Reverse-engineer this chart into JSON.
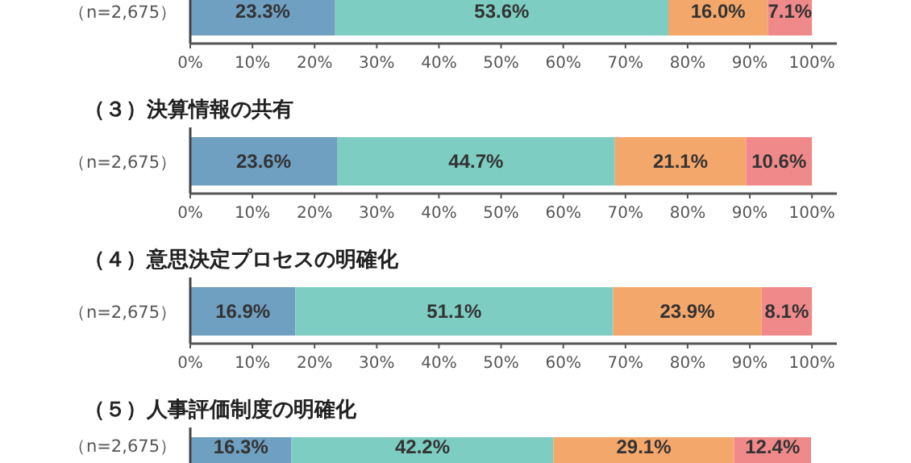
{
  "chart_data": [
    {
      "type": "bar",
      "orientation": "horizontal",
      "stacked": true,
      "categories": [
        "（n=2,675）"
      ],
      "series": [
        {
          "color": "#6f9fc1",
          "values": [
            23.3
          ],
          "value_labels": [
            "23.3%"
          ]
        },
        {
          "color": "#7ecdc3",
          "values": [
            53.6
          ],
          "value_labels": [
            "53.6%"
          ]
        },
        {
          "color": "#f4a76b",
          "values": [
            16.0
          ],
          "value_labels": [
            "16.0%"
          ]
        },
        {
          "color": "#f08a8a",
          "values": [
            7.1
          ],
          "value_labels": [
            "7.1%"
          ]
        }
      ],
      "xlim": [
        0,
        104
      ],
      "xticks": [
        {
          "value": 0,
          "label": "0%"
        },
        {
          "value": 10,
          "label": "10%"
        },
        {
          "value": 20,
          "label": "20%"
        },
        {
          "value": 30,
          "label": "30%"
        },
        {
          "value": 40,
          "label": "40%"
        },
        {
          "value": 50,
          "label": "50%"
        },
        {
          "value": 60,
          "label": "60%"
        },
        {
          "value": 70,
          "label": "70%"
        },
        {
          "value": 80,
          "label": "80%"
        },
        {
          "value": 90,
          "label": "90%"
        },
        {
          "value": 100,
          "label": "100%"
        }
      ]
    },
    {
      "type": "bar",
      "orientation": "horizontal",
      "stacked": true,
      "title": "（３）決算情報の共有",
      "categories": [
        "（n=2,675）"
      ],
      "series": [
        {
          "color": "#6f9fc1",
          "values": [
            23.6
          ],
          "value_labels": [
            "23.6%"
          ]
        },
        {
          "color": "#7ecdc3",
          "values": [
            44.7
          ],
          "value_labels": [
            "44.7%"
          ]
        },
        {
          "color": "#f4a76b",
          "values": [
            21.1
          ],
          "value_labels": [
            "21.1%"
          ]
        },
        {
          "color": "#f08a8a",
          "values": [
            10.6
          ],
          "value_labels": [
            "10.6%"
          ]
        }
      ],
      "xlim": [
        0,
        104
      ],
      "xticks": [
        {
          "value": 0,
          "label": "0%"
        },
        {
          "value": 10,
          "label": "10%"
        },
        {
          "value": 20,
          "label": "20%"
        },
        {
          "value": 30,
          "label": "30%"
        },
        {
          "value": 40,
          "label": "40%"
        },
        {
          "value": 50,
          "label": "50%"
        },
        {
          "value": 60,
          "label": "60%"
        },
        {
          "value": 70,
          "label": "70%"
        },
        {
          "value": 80,
          "label": "80%"
        },
        {
          "value": 90,
          "label": "90%"
        },
        {
          "value": 100,
          "label": "100%"
        }
      ]
    },
    {
      "type": "bar",
      "orientation": "horizontal",
      "stacked": true,
      "title": "（４）意思決定プロセスの明確化",
      "categories": [
        "（n=2,675）"
      ],
      "series": [
        {
          "color": "#6f9fc1",
          "values": [
            16.9
          ],
          "value_labels": [
            "16.9%"
          ]
        },
        {
          "color": "#7ecdc3",
          "values": [
            51.1
          ],
          "value_labels": [
            "51.1%"
          ]
        },
        {
          "color": "#f4a76b",
          "values": [
            23.9
          ],
          "value_labels": [
            "23.9%"
          ]
        },
        {
          "color": "#f08a8a",
          "values": [
            8.1
          ],
          "value_labels": [
            "8.1%"
          ]
        }
      ],
      "xlim": [
        0,
        104
      ],
      "xticks": [
        {
          "value": 0,
          "label": "0%"
        },
        {
          "value": 10,
          "label": "10%"
        },
        {
          "value": 20,
          "label": "20%"
        },
        {
          "value": 30,
          "label": "30%"
        },
        {
          "value": 40,
          "label": "40%"
        },
        {
          "value": 50,
          "label": "50%"
        },
        {
          "value": 60,
          "label": "60%"
        },
        {
          "value": 70,
          "label": "70%"
        },
        {
          "value": 80,
          "label": "80%"
        },
        {
          "value": 90,
          "label": "90%"
        },
        {
          "value": 100,
          "label": "100%"
        }
      ]
    },
    {
      "type": "bar",
      "orientation": "horizontal",
      "stacked": true,
      "title": "（５）人事評価制度の明確化",
      "categories": [
        "（n=2,675）"
      ],
      "tick_labels": "y",
      "series": [
        {
          "color": "#6f9fc1",
          "values": [
            16.3
          ],
          "value_labels": [
            "16.3%"
          ]
        },
        {
          "color": "#7ecdc3",
          "values": [
            42.2
          ],
          "value_labels": [
            "42.2%"
          ]
        },
        {
          "color": "#f4a76b",
          "values": [
            29.1
          ],
          "value_labels": [
            "29.1%"
          ]
        },
        {
          "color": "#f08a8a",
          "values": [
            12.4
          ],
          "value_labels": [
            "12.4%"
          ]
        }
      ]
    }
  ]
}
